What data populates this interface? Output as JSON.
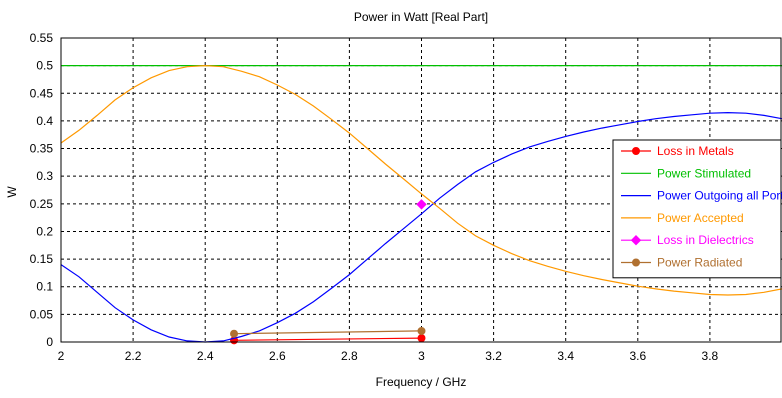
{
  "chart_data": {
    "type": "line",
    "title": "Power in Watt [Real Part]",
    "xlabel": "Frequency / GHz",
    "ylabel": "W",
    "xlim": [
      2,
      4
    ],
    "ylim": [
      0,
      0.55
    ],
    "x_ticks": [
      "2",
      "2.2",
      "2.4",
      "2.6",
      "2.8",
      "3",
      "3.2",
      "3.4",
      "3.6",
      "3.8"
    ],
    "y_ticks": [
      "0",
      "0.05",
      "0.1",
      "0.15",
      "0.2",
      "0.25",
      "0.3",
      "0.35",
      "0.4",
      "0.45",
      "0.5",
      "0.55"
    ],
    "grid": true,
    "legend_position": "right",
    "series": [
      {
        "name": "Loss in Metals",
        "color": "#ff0000",
        "marker": "circle",
        "x": [
          2.48,
          3.0
        ],
        "y": [
          0.003,
          0.007
        ]
      },
      {
        "name": "Power Stimulated",
        "color": "#00c000",
        "marker": "none",
        "x": [
          2.0,
          4.0
        ],
        "y": [
          0.5,
          0.5
        ]
      },
      {
        "name": "Power Outgoing all Ports",
        "color": "#0000ff",
        "marker": "none",
        "x": [
          2.0,
          2.05,
          2.1,
          2.15,
          2.2,
          2.25,
          2.3,
          2.35,
          2.4,
          2.45,
          2.5,
          2.55,
          2.6,
          2.65,
          2.7,
          2.75,
          2.8,
          2.85,
          2.9,
          2.95,
          3.0,
          3.05,
          3.1,
          3.15,
          3.2,
          3.25,
          3.3,
          3.35,
          3.4,
          3.45,
          3.5,
          3.55,
          3.6,
          3.65,
          3.7,
          3.75,
          3.8,
          3.85,
          3.9,
          3.95,
          4.0
        ],
        "y": [
          0.14,
          0.118,
          0.09,
          0.062,
          0.04,
          0.022,
          0.009,
          0.002,
          0.0,
          0.002,
          0.01,
          0.02,
          0.035,
          0.052,
          0.073,
          0.097,
          0.122,
          0.15,
          0.178,
          0.205,
          0.232,
          0.26,
          0.285,
          0.308,
          0.325,
          0.34,
          0.353,
          0.363,
          0.372,
          0.38,
          0.387,
          0.393,
          0.399,
          0.404,
          0.408,
          0.411,
          0.414,
          0.415,
          0.414,
          0.41,
          0.404
        ]
      },
      {
        "name": "Power Accepted",
        "color": "#ff9900",
        "marker": "none",
        "x": [
          2.0,
          2.05,
          2.1,
          2.15,
          2.2,
          2.25,
          2.3,
          2.35,
          2.4,
          2.45,
          2.5,
          2.55,
          2.6,
          2.65,
          2.7,
          2.75,
          2.8,
          2.85,
          2.9,
          2.95,
          3.0,
          3.05,
          3.1,
          3.15,
          3.2,
          3.25,
          3.3,
          3.35,
          3.4,
          3.45,
          3.5,
          3.55,
          3.6,
          3.65,
          3.7,
          3.75,
          3.8,
          3.85,
          3.9,
          3.95,
          4.0
        ],
        "y": [
          0.36,
          0.383,
          0.41,
          0.438,
          0.46,
          0.478,
          0.491,
          0.498,
          0.5,
          0.498,
          0.49,
          0.48,
          0.465,
          0.448,
          0.427,
          0.403,
          0.378,
          0.35,
          0.322,
          0.295,
          0.268,
          0.242,
          0.215,
          0.192,
          0.175,
          0.16,
          0.147,
          0.137,
          0.128,
          0.12,
          0.113,
          0.107,
          0.101,
          0.096,
          0.092,
          0.089,
          0.086,
          0.085,
          0.086,
          0.09,
          0.096
        ]
      },
      {
        "name": "Loss in Dielectrics",
        "color": "#ff00ff",
        "marker": "diamond",
        "x": [
          3.0
        ],
        "y": [
          0.249
        ]
      },
      {
        "name": "Power Radiated",
        "color": "#b07030",
        "marker": "circle",
        "x": [
          2.48,
          3.0
        ],
        "y": [
          0.015,
          0.02
        ]
      }
    ]
  }
}
